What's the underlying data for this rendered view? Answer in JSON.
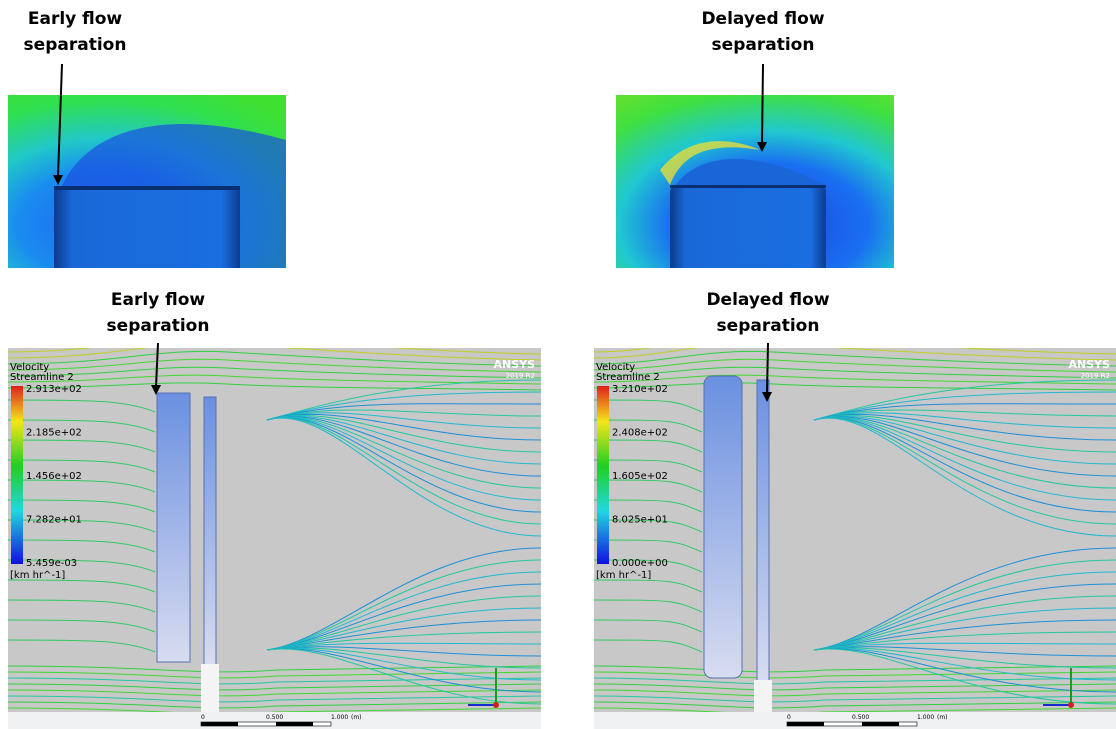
{
  "labels": [
    {
      "line1": "Early flow",
      "line2": "separation"
    },
    {
      "line1": "Delayed flow",
      "line2": "separation"
    },
    {
      "line1": "Early flow",
      "line2": "separation"
    },
    {
      "line1": "Delayed flow",
      "line2": "separation"
    }
  ],
  "legends": [
    {
      "title": "Velocity",
      "subtitle": "Streamline 2",
      "values": [
        "2.913e+02",
        "2.185e+02",
        "1.456e+02",
        "7.282e+01",
        "5.459e-03"
      ],
      "unit": "[km hr^-1]"
    },
    {
      "title": "Velocity",
      "subtitle": "Streamline 2",
      "values": [
        "3.210e+02",
        "2.408e+02",
        "1.605e+02",
        "8.025e+01",
        "0.000e+00"
      ],
      "unit": "[km hr^-1]"
    }
  ],
  "logo": {
    "name": "ANSYS",
    "version": "2019 R2"
  },
  "scale": {
    "ticks": [
      "0",
      "0.500",
      "1.000"
    ],
    "unit": "(m)"
  }
}
